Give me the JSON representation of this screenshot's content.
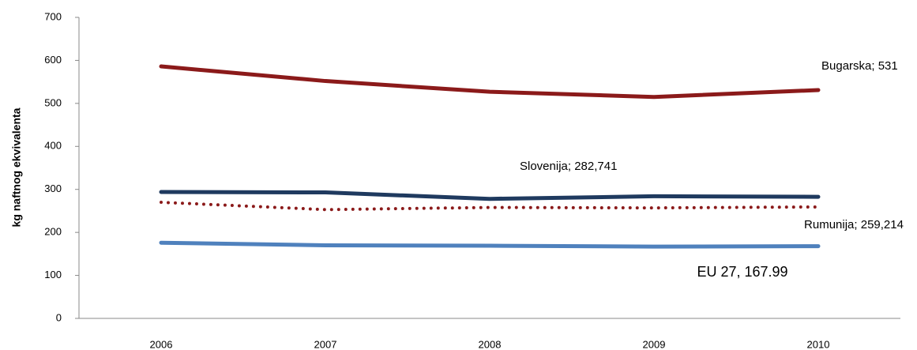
{
  "chart_data": {
    "type": "line",
    "y_label": "kg naftnog ekvivalenta",
    "categories": [
      "2006",
      "2007",
      "2008",
      "2009",
      "2010"
    ],
    "series": [
      {
        "name": "Bugarska",
        "color": "#8b1a1a",
        "line_style": "solid",
        "values": [
          586,
          552,
          527,
          515,
          531
        ]
      },
      {
        "name": "Slovenija",
        "color": "#1f3a5f",
        "line_style": "solid",
        "values": [
          294,
          293,
          278,
          284,
          282.741
        ]
      },
      {
        "name": "Rumunija",
        "color": "#8b1a1a",
        "line_style": "dotted",
        "values": [
          270,
          253,
          258,
          257,
          259.214
        ]
      },
      {
        "name": "EU 27",
        "color": "#4f81bd",
        "line_style": "solid",
        "values": [
          176,
          170,
          169,
          167,
          167.99
        ]
      }
    ],
    "annotations": [
      "Bugarska; 531",
      "Slovenija; 282,741",
      "Rumunija; 259,214",
      "EU 27, 167.99"
    ],
    "ylim": [
      0,
      700
    ],
    "yticks": [
      0,
      100,
      200,
      300,
      400,
      500,
      600,
      700
    ],
    "grid": false
  }
}
